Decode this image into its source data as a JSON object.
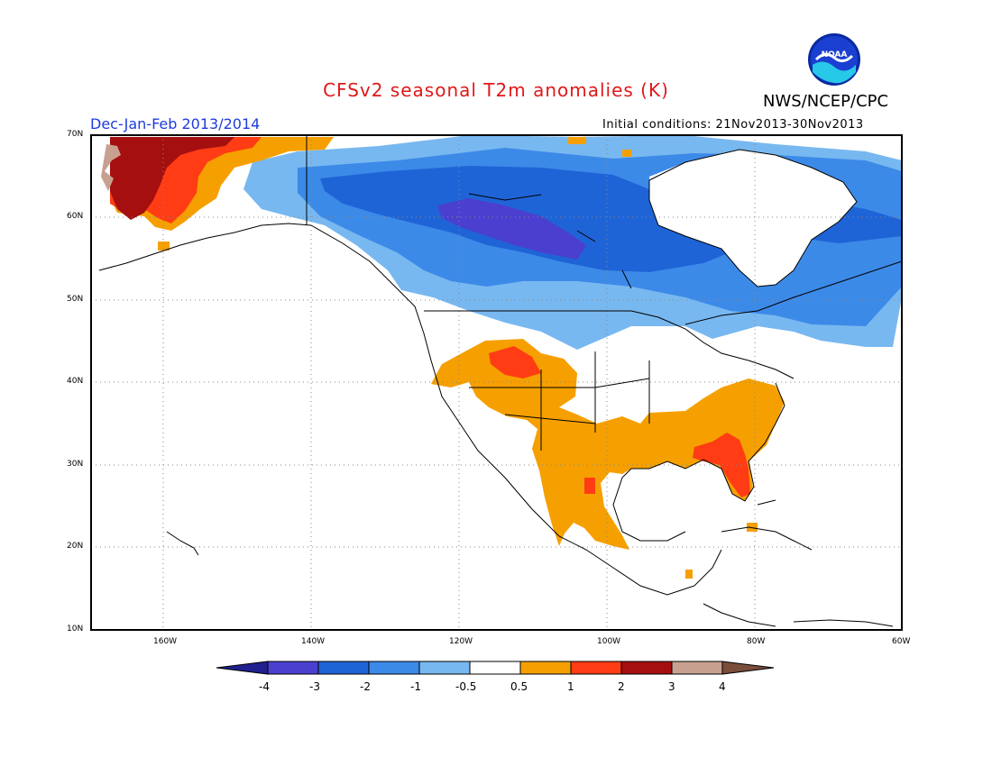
{
  "title": "CFSv2 seasonal T2m anomalies (K)",
  "agency": "NWS/NCEP/CPC",
  "logo_text": "NOAA",
  "season": "Dec-Jan-Feb 2013/2014",
  "initial_conditions": "Initial conditions: 21Nov2013-30Nov2013",
  "lat_labels": [
    "70N",
    "60N",
    "50N",
    "40N",
    "30N",
    "20N",
    "10N"
  ],
  "lon_labels": [
    "160W",
    "140W",
    "120W",
    "100W",
    "80W",
    "60W"
  ],
  "colorbar": {
    "labels": [
      "-4",
      "-3",
      "-2",
      "-1",
      "-0.5",
      "0.5",
      "1",
      "2",
      "3",
      "4"
    ],
    "colors": [
      "#20208f",
      "#4b3fcf",
      "#1f64d6",
      "#3c8ae8",
      "#78b8f0",
      "#ffffff",
      "#f5a000",
      "#ff3c14",
      "#a50f0f",
      "#c8a090",
      "#7a4e3a"
    ]
  }
}
